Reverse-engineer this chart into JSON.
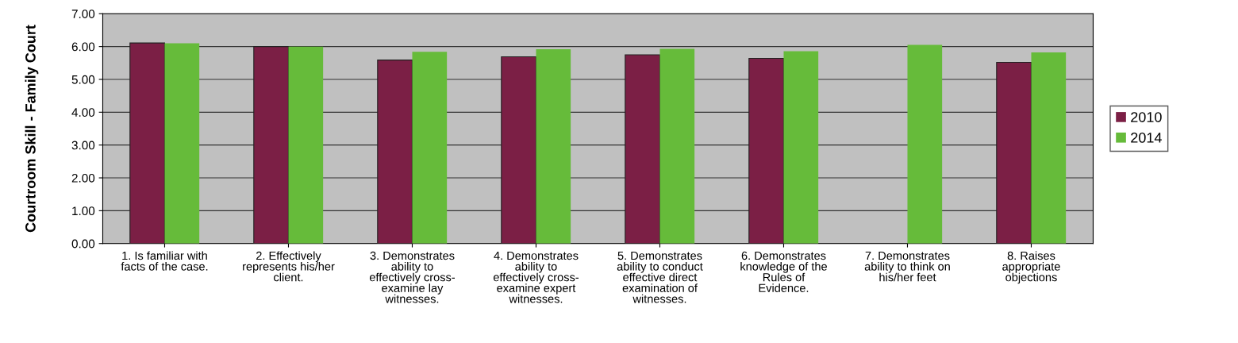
{
  "chart_data": {
    "type": "bar",
    "ylabel": "Courtroom Skill - Family Court",
    "categories": [
      "1. Is familiar with\nfacts of the case.",
      "2. Effectively\nrepresents his/her\nclient.",
      "3. Demonstrates\nability to\neffectively cross-\nexamine lay\nwitnesses.",
      "4. Demonstrates\nability to\neffectively cross-\nexamine expert\nwitnesses.",
      "5. Demonstrates\nability to conduct\neffective direct\nexamination of\nwitnesses.",
      "6. Demonstrates\nknowledge of the\nRules of\nEvidence.",
      "7. Demonstrates\nability to think on\nhis/her feet",
      "8. Raises\nappropriate\nobjections"
    ],
    "series": [
      {
        "name": "2010",
        "color": "#7b1f45",
        "values": [
          6.11,
          6.0,
          5.59,
          5.69,
          5.75,
          5.64,
          null,
          5.52
        ]
      },
      {
        "name": "2014",
        "color": "#66bb3a",
        "values": [
          6.1,
          6.0,
          5.84,
          5.92,
          5.93,
          5.86,
          6.05,
          5.82
        ]
      }
    ],
    "ylim": [
      0,
      7
    ],
    "yticks": [
      {
        "value": 0,
        "label": "0.00"
      },
      {
        "value": 1,
        "label": "1.00"
      },
      {
        "value": 2,
        "label": "2.00"
      },
      {
        "value": 3,
        "label": "3.00"
      },
      {
        "value": 4,
        "label": "4.00"
      },
      {
        "value": 5,
        "label": "5.00"
      },
      {
        "value": 6,
        "label": "6.00"
      },
      {
        "value": 7,
        "label": "7.00"
      }
    ],
    "grid": "y",
    "legend": "right"
  }
}
